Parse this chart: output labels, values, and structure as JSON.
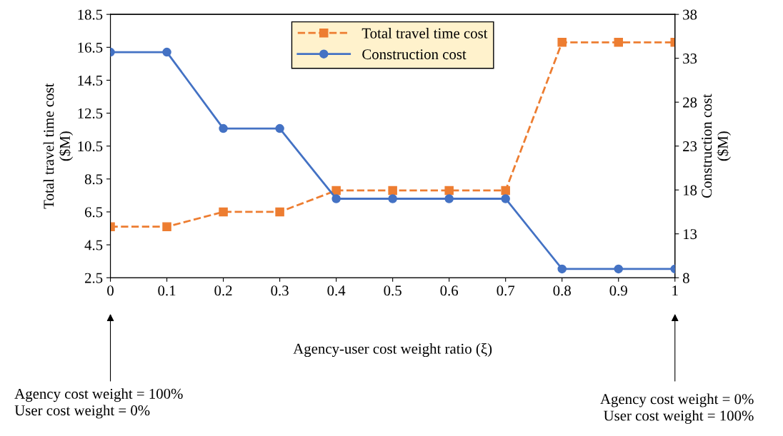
{
  "chart_data": {
    "type": "line",
    "x": [
      0,
      0.1,
      0.2,
      0.3,
      0.4,
      0.5,
      0.6,
      0.7,
      0.8,
      0.9,
      1
    ],
    "xlabel": "Agency-user cost weight ratio (ξ)",
    "ylabel": "Total travel time cost\n($M)",
    "y2label": "Construction cost\n($M)",
    "series": [
      {
        "name": "Total travel time cost",
        "color": "#ed7d31",
        "marker": "square",
        "line_style": "dashed",
        "values": [
          5.6,
          5.6,
          6.5,
          6.5,
          7.8,
          7.8,
          7.8,
          7.8,
          16.8,
          16.8,
          16.8
        ]
      },
      {
        "name": "Construction cost",
        "color": "#4472c4",
        "marker": "circle",
        "line_style": "solid",
        "axis": "y2",
        "values": [
          33.7,
          33.7,
          25,
          25,
          17,
          17,
          17,
          17,
          9,
          9,
          9
        ]
      }
    ],
    "xlim": [
      0,
      1
    ],
    "xticks": [
      0,
      0.1,
      0.2,
      0.3,
      0.4,
      0.5,
      0.6,
      0.7,
      0.8,
      0.9,
      1
    ],
    "ylim": [
      2.5,
      18.5
    ],
    "yticks": [
      2.5,
      4.5,
      6.5,
      8.5,
      10.5,
      12.5,
      14.5,
      16.5,
      18.5
    ],
    "y2lim": [
      8,
      38
    ],
    "y2ticks": [
      8,
      13,
      18,
      23,
      28,
      33,
      38
    ],
    "grid": false,
    "legend": "top",
    "annotations": [
      "Agency cost weight = 100%\nUser cost weight = 0%",
      "Agency cost weight = 0%\nUser cost weight = 100%"
    ]
  }
}
